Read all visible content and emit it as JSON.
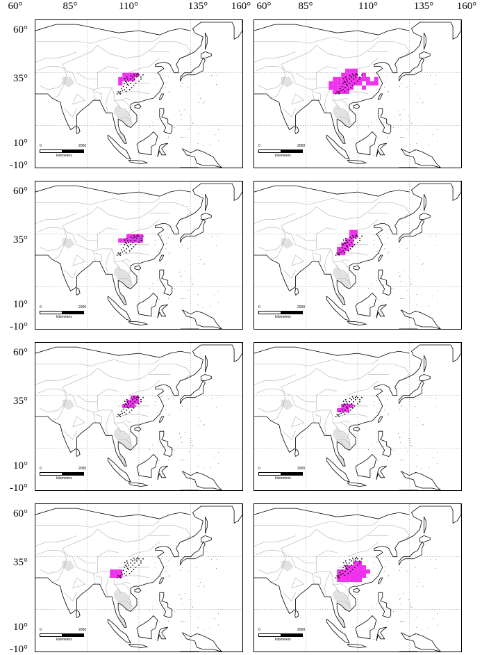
{
  "axes": {
    "longitude_labels": [
      "60°",
      "85°",
      "110°",
      "135°",
      "160°"
    ],
    "latitude_labels": [
      "60°",
      "35°",
      "10°",
      "-10°"
    ],
    "lon_range": [
      60,
      160
    ],
    "lat_range": [
      -10,
      60
    ]
  },
  "scale_bar": {
    "start": "0",
    "end": "2000",
    "unit": "kilometers"
  },
  "colors": {
    "range": "#ee33ee",
    "points": "#000000",
    "coast": "#000000",
    "borders": "#bbbbbb",
    "grid": "#9a9a9a"
  },
  "panels": [
    {
      "cells": [
        [
          103,
          34
        ],
        [
          105,
          34
        ],
        [
          107,
          34
        ],
        [
          109,
          34
        ],
        [
          101,
          32
        ],
        [
          103,
          32
        ],
        [
          105,
          32
        ],
        [
          107,
          32
        ],
        [
          101,
          30
        ]
      ]
    },
    {
      "cells": [
        [
          105,
          36
        ],
        [
          107,
          36
        ],
        [
          109,
          36
        ],
        [
          103,
          34
        ],
        [
          105,
          34
        ],
        [
          107,
          34
        ],
        [
          109,
          34
        ],
        [
          113,
          34
        ],
        [
          99,
          32
        ],
        [
          101,
          32
        ],
        [
          103,
          32
        ],
        [
          105,
          32
        ],
        [
          107,
          32
        ],
        [
          109,
          32
        ],
        [
          111,
          32
        ],
        [
          113,
          32
        ],
        [
          115,
          32
        ],
        [
          119,
          32
        ],
        [
          97,
          30
        ],
        [
          99,
          30
        ],
        [
          101,
          30
        ],
        [
          103,
          30
        ],
        [
          105,
          30
        ],
        [
          107,
          30
        ],
        [
          109,
          30
        ],
        [
          111,
          30
        ],
        [
          115,
          30
        ],
        [
          117,
          30
        ],
        [
          119,
          30
        ],
        [
          97,
          28
        ],
        [
          99,
          28
        ],
        [
          101,
          28
        ],
        [
          103,
          28
        ],
        [
          105,
          28
        ],
        [
          107,
          28
        ],
        [
          113,
          28
        ],
        [
          99,
          26
        ],
        [
          101,
          26
        ],
        [
          103,
          26
        ],
        [
          105,
          26
        ]
      ]
    },
    {
      "cells": [
        [
          105,
          34
        ],
        [
          107,
          34
        ],
        [
          109,
          34
        ],
        [
          111,
          34
        ],
        [
          101,
          32
        ],
        [
          103,
          32
        ],
        [
          105,
          32
        ],
        [
          107,
          32
        ],
        [
          109,
          32
        ],
        [
          111,
          32
        ]
      ]
    },
    {
      "cells": [
        [
          107,
          36
        ],
        [
          109,
          36
        ],
        [
          107,
          34
        ],
        [
          109,
          34
        ],
        [
          105,
          32
        ],
        [
          107,
          32
        ],
        [
          103,
          30
        ],
        [
          105,
          30
        ],
        [
          107,
          30
        ],
        [
          101,
          28
        ],
        [
          103,
          28
        ],
        [
          105,
          28
        ],
        [
          101,
          26
        ],
        [
          103,
          26
        ]
      ]
    },
    {
      "cells": [
        [
          107,
          34
        ],
        [
          109,
          34
        ],
        [
          105,
          32
        ],
        [
          107,
          32
        ],
        [
          109,
          32
        ],
        [
          103,
          30
        ],
        [
          105,
          30
        ],
        [
          107,
          30
        ]
      ]
    },
    {
      "cells": [
        [
          103,
          30
        ],
        [
          105,
          30
        ],
        [
          107,
          30
        ],
        [
          101,
          28
        ],
        [
          103,
          28
        ],
        [
          105,
          28
        ]
      ]
    },
    {
      "cells": [
        [
          97,
          28
        ],
        [
          99,
          28
        ],
        [
          101,
          28
        ],
        [
          97,
          26
        ],
        [
          99,
          26
        ],
        [
          101,
          26
        ]
      ]
    },
    {
      "cells": [
        [
          109,
          32
        ],
        [
          111,
          32
        ],
        [
          105,
          30
        ],
        [
          107,
          30
        ],
        [
          109,
          30
        ],
        [
          111,
          30
        ],
        [
          113,
          30
        ],
        [
          101,
          28
        ],
        [
          103,
          28
        ],
        [
          105,
          28
        ],
        [
          107,
          28
        ],
        [
          109,
          28
        ],
        [
          111,
          28
        ],
        [
          113,
          28
        ],
        [
          115,
          28
        ],
        [
          101,
          26
        ],
        [
          103,
          26
        ],
        [
          105,
          26
        ],
        [
          107,
          26
        ],
        [
          109,
          26
        ],
        [
          111,
          26
        ],
        [
          113,
          26
        ],
        [
          101,
          24
        ],
        [
          103,
          24
        ],
        [
          105,
          24
        ],
        [
          107,
          24
        ],
        [
          109,
          24
        ],
        [
          111,
          24
        ]
      ]
    }
  ]
}
